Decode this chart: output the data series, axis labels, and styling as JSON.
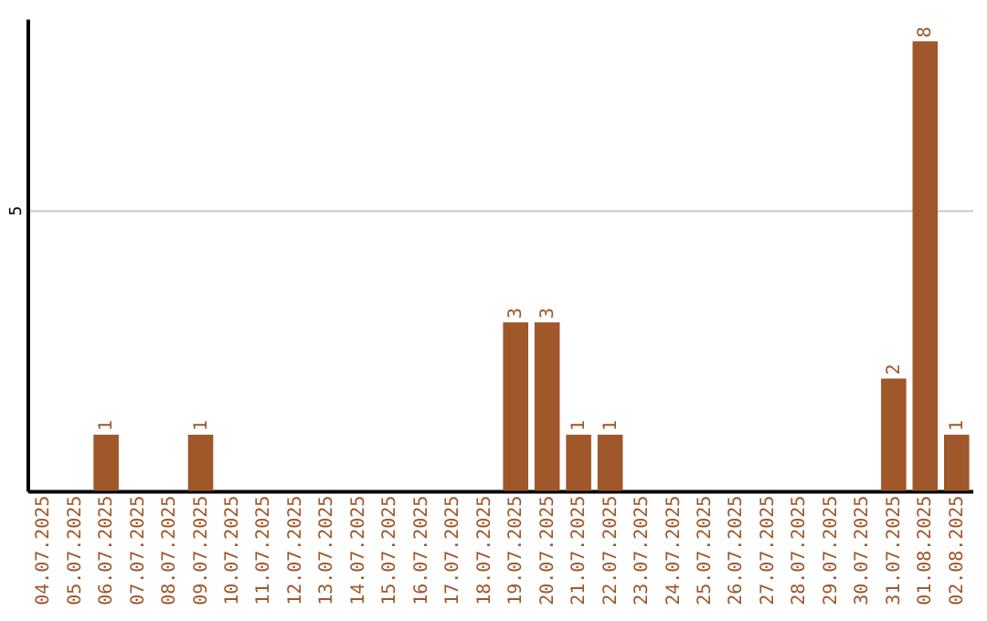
{
  "chart_data": {
    "type": "bar",
    "categories": [
      "04.07.2025",
      "05.07.2025",
      "06.07.2025",
      "07.07.2025",
      "08.07.2025",
      "09.07.2025",
      "10.07.2025",
      "11.07.2025",
      "12.07.2025",
      "13.07.2025",
      "14.07.2025",
      "15.07.2025",
      "16.07.2025",
      "17.07.2025",
      "18.07.2025",
      "19.07.2025",
      "20.07.2025",
      "21.07.2025",
      "22.07.2025",
      "23.07.2025",
      "24.07.2025",
      "25.07.2025",
      "26.07.2025",
      "27.07.2025",
      "28.07.2025",
      "29.07.2025",
      "30.07.2025",
      "31.07.2025",
      "01.08.2025",
      "02.08.2025"
    ],
    "values": [
      0,
      0,
      1,
      0,
      0,
      1,
      0,
      0,
      0,
      0,
      0,
      0,
      0,
      0,
      0,
      3,
      3,
      1,
      1,
      0,
      0,
      0,
      0,
      0,
      0,
      0,
      0,
      2,
      8,
      1
    ],
    "value_labels": [
      null,
      null,
      "1",
      null,
      null,
      "1",
      null,
      null,
      null,
      null,
      null,
      null,
      null,
      null,
      null,
      "3",
      "3",
      "1",
      "1",
      null,
      null,
      null,
      null,
      null,
      null,
      null,
      null,
      "2",
      "8",
      "1"
    ],
    "color": "#a0572a",
    "ylim": [
      0,
      8.4
    ],
    "yticks": [
      5
    ],
    "grid": "y"
  }
}
